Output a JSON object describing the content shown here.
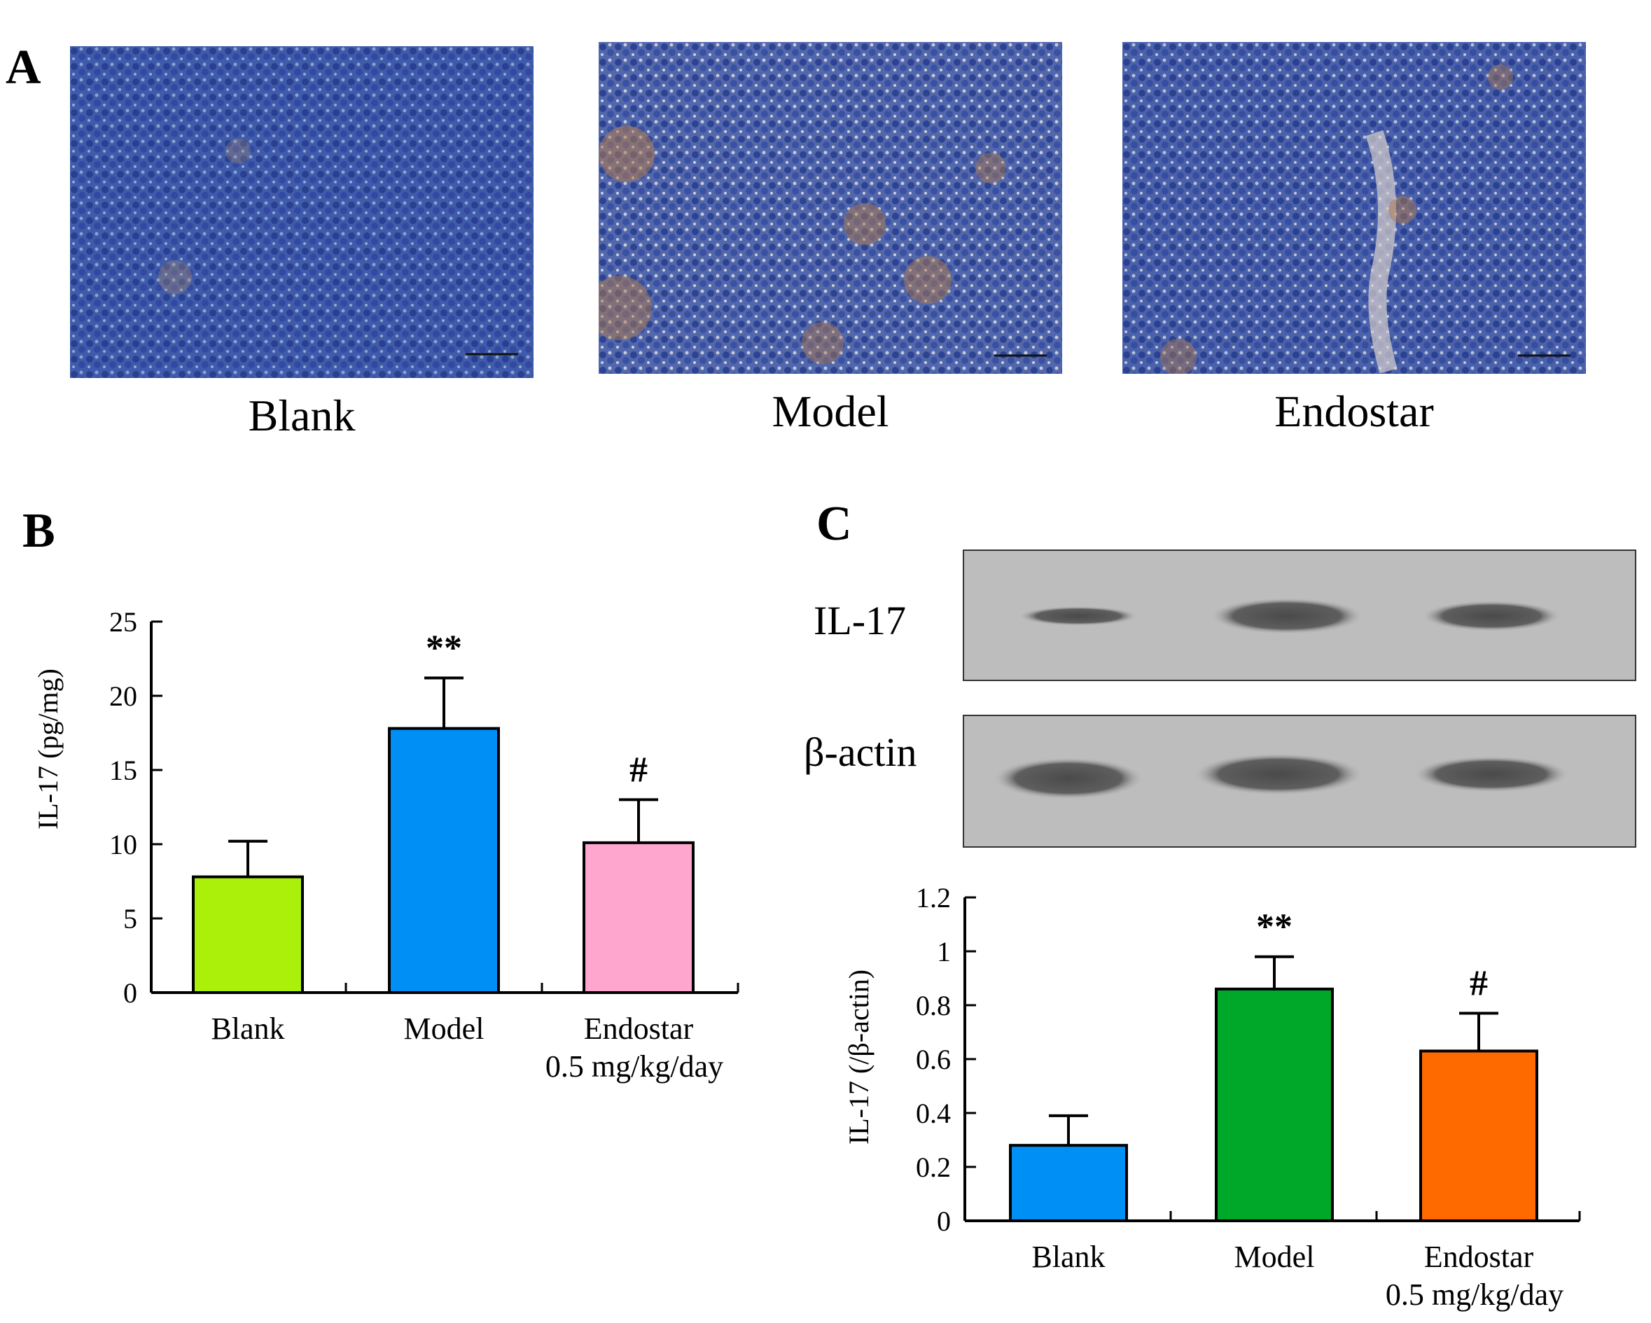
{
  "panels": {
    "a": {
      "letter": "A",
      "images": [
        {
          "caption": "Blank"
        },
        {
          "caption": "Model"
        },
        {
          "caption": "Endostar"
        }
      ]
    },
    "b": {
      "letter": "B"
    },
    "c": {
      "letter": "C",
      "blot_rows": [
        {
          "label": "IL-17"
        },
        {
          "label": "β-actin"
        }
      ]
    }
  },
  "colors": {
    "b_blank": "#aaf00a",
    "b_model": "#0090f5",
    "b_endostar": "#ffa6cf",
    "c_blank": "#0090f5",
    "c_model": "#00a82a",
    "c_endostar": "#ff6a00"
  },
  "chart_data": [
    {
      "type": "bar",
      "panel": "B",
      "categories": [
        "Blank",
        "Model",
        "Endostar"
      ],
      "category_sublabels": [
        "",
        "",
        "0.5 mg/kg/day"
      ],
      "values": [
        7.8,
        17.8,
        10.1
      ],
      "errors": [
        2.4,
        3.4,
        2.9
      ],
      "significance": [
        "",
        "**",
        "#"
      ],
      "ylabel": "IL-17 (pg/mg)",
      "yticks": [
        "0",
        "5",
        "10",
        "15",
        "20",
        "25"
      ],
      "ylim": [
        0,
        25
      ],
      "grid": false
    },
    {
      "type": "bar",
      "panel": "C",
      "categories": [
        "Blank",
        "Model",
        "Endostar"
      ],
      "category_sublabels": [
        "",
        "",
        "0.5 mg/kg/day"
      ],
      "values": [
        0.28,
        0.86,
        0.63
      ],
      "errors": [
        0.11,
        0.12,
        0.14
      ],
      "significance": [
        "",
        "**",
        "#"
      ],
      "ylabel": "IL-17  (/β-actin)",
      "yticks": [
        "0",
        "0.2",
        "0.4",
        "0.6",
        "0.8",
        "1",
        "1.2"
      ],
      "ylim": [
        0,
        1.2
      ],
      "grid": false
    }
  ]
}
